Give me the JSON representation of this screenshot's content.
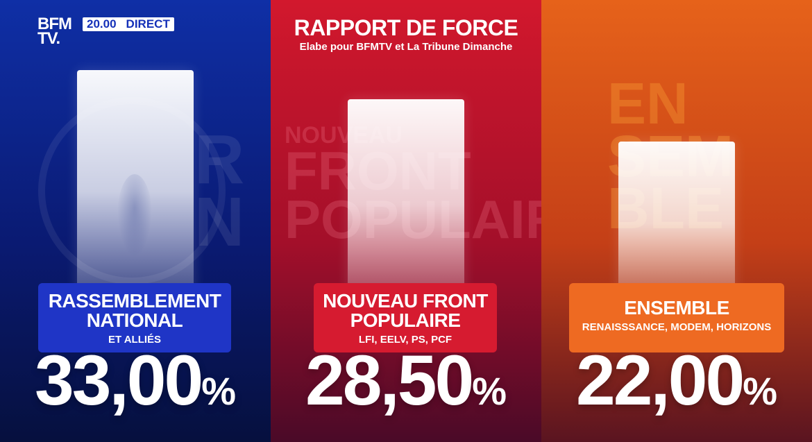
{
  "broadcaster": {
    "logo_line1": "BFM",
    "logo_line2": "TV.",
    "time": "20.00",
    "live": "DIRECT"
  },
  "header": {
    "title": "RAPPORT DE FORCE",
    "subtitle": "Elabe pour BFMTV et La Tribune Dimanche"
  },
  "watermarks": {
    "rn_letters": [
      "R",
      "N"
    ],
    "nfp_line1": "NOUVEAU",
    "nfp_line2": "FRONT",
    "nfp_line3": "POPULAIRE",
    "ens_letters": [
      "EN",
      "SEM",
      "BLE"
    ]
  },
  "colors": {
    "rn": "#1f35c6",
    "nfp": "#d61b30",
    "ensemble": "#ee6a22"
  },
  "chart_data": {
    "type": "bar",
    "categories": [
      "RASSEMBLEMENT NATIONAL",
      "NOUVEAU FRONT POPULAIRE",
      "ENSEMBLE"
    ],
    "subtitles": [
      "ET ALLIÉS",
      "LFI, EELV, PS, PCF",
      "RENAISSSANCE, MODEM, HORIZONS"
    ],
    "values": [
      33.0,
      28.5,
      22.0
    ],
    "value_labels": [
      "33,00",
      "28,50",
      "22,00"
    ],
    "unit": "%",
    "ylim": [
      0,
      38
    ]
  }
}
